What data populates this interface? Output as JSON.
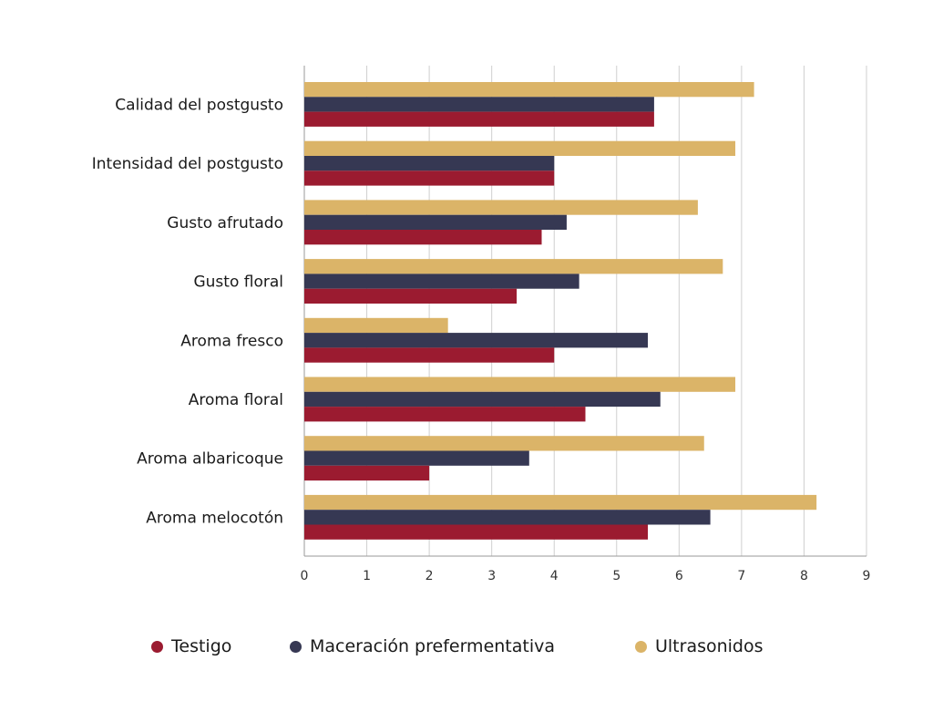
{
  "chart_data": {
    "type": "bar",
    "orientation": "horizontal",
    "categories": [
      "Calidad del postgusto",
      "Intensidad del postgusto",
      "Gusto afrutado",
      "Gusto floral",
      "Aroma fresco",
      "Aroma floral",
      "Aroma albaricoque",
      "Aroma melocotón"
    ],
    "series": [
      {
        "name": "Testigo",
        "color": "#9b1b30",
        "values": [
          5.6,
          4.0,
          3.8,
          3.4,
          4.0,
          4.5,
          2.0,
          5.5
        ]
      },
      {
        "name": "Maceración prefermentativa",
        "color": "#363853",
        "values": [
          5.6,
          4.0,
          4.2,
          4.4,
          5.5,
          5.7,
          3.6,
          6.5
        ]
      },
      {
        "name": "Ultrasonidos",
        "color": "#dbb468",
        "values": [
          7.2,
          6.9,
          6.3,
          6.7,
          2.3,
          6.9,
          6.4,
          8.2
        ]
      }
    ],
    "xlim": [
      0,
      9
    ],
    "xticks": [
      "0",
      "1",
      "2",
      "3",
      "4",
      "5",
      "6",
      "7",
      "8",
      "9"
    ],
    "grid": "vertical",
    "legend_position": "bottom"
  }
}
